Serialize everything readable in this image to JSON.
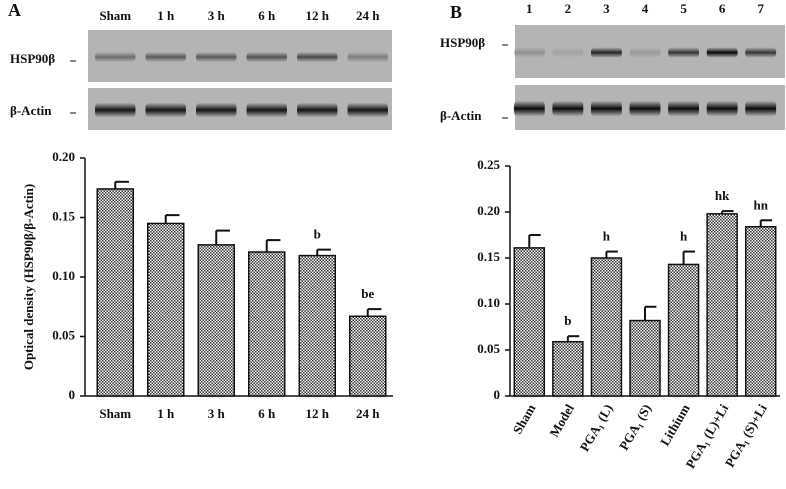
{
  "chart_data": [
    {
      "type": "bar",
      "panel_label": "A",
      "blot_rows": [
        "HSP90β",
        "β-Actin"
      ],
      "y_label": "Optical density (HSP90β/β-Actin)",
      "categories": [
        "Sham",
        "1 h",
        "3 h",
        "6 h",
        "12 h",
        "24 h"
      ],
      "values": [
        0.174,
        0.145,
        0.127,
        0.121,
        0.118,
        0.067
      ],
      "errors": [
        0.006,
        0.007,
        0.012,
        0.01,
        0.005,
        0.006
      ],
      "bar_labels": [
        null,
        null,
        null,
        null,
        "b",
        "be"
      ],
      "ylim": [
        0,
        0.2
      ],
      "yticks": [
        0,
        0.05,
        {
          "value": 0.1,
          "label": "0.10"
        },
        0.15,
        {
          "value": 0.2,
          "label": "0.20"
        }
      ]
    },
    {
      "type": "bar",
      "panel_label": "B",
      "blot_rows": [
        "HSP90β",
        "β-Actin"
      ],
      "lane_labels": [
        "1",
        "2",
        "3",
        "4",
        "5",
        "6",
        "7"
      ],
      "categories": [
        "Sham",
        "Model",
        "PGA₁ (L)",
        "PGA₁ (S)",
        "Lithium",
        "PGA₁ (L)+Li",
        "PGA₁ (S)+Li"
      ],
      "values": [
        0.161,
        0.059,
        0.15,
        0.082,
        0.143,
        0.198,
        0.184
      ],
      "errors": [
        0.014,
        0.006,
        0.007,
        0.015,
        0.014,
        0.003,
        0.007
      ],
      "bar_labels": [
        null,
        "b",
        "h",
        null,
        "h",
        "hk",
        "hn"
      ],
      "ylim": [
        0,
        0.25
      ],
      "yticks": [
        0,
        0.05,
        {
          "value": 0.1,
          "label": "0.10"
        },
        0.15,
        {
          "value": 0.2,
          "label": "0.20"
        },
        0.25
      ]
    }
  ]
}
